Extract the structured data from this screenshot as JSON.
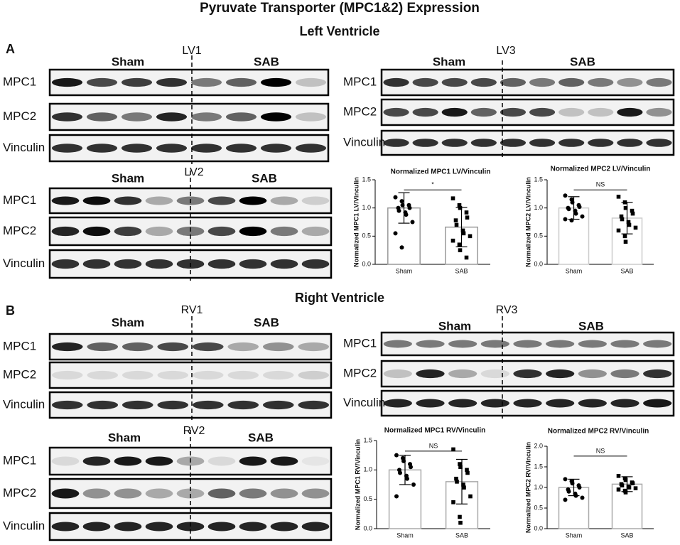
{
  "figure": {
    "title": "Pyruvate Transporter (MPC1&2) Expression",
    "sections": [
      "Left Ventricle",
      "Right Ventricle"
    ],
    "panel_labels": [
      "A",
      "B"
    ]
  },
  "blots": [
    {
      "label": "LV1",
      "groups": [
        "Sham",
        "SAB"
      ],
      "rows": [
        "MPC1",
        "MPC2",
        "Vinculin"
      ]
    },
    {
      "label": "LV3",
      "groups": [
        "Sham",
        "SAB"
      ],
      "rows": [
        "MPC1",
        "MPC2",
        "Vinculin"
      ]
    },
    {
      "label": "LV2",
      "groups": [
        "Sham",
        "SAB"
      ],
      "rows": [
        "MPC1",
        "MPC2",
        "Vinculin"
      ]
    },
    {
      "label": "RV1",
      "groups": [
        "Sham",
        "SAB"
      ],
      "rows": [
        "MPC1",
        "MPC2",
        "Vinculin"
      ]
    },
    {
      "label": "RV3",
      "groups": [
        "Sham",
        "SAB"
      ],
      "rows": [
        "MPC1",
        "MPC2",
        "Vinculin"
      ]
    },
    {
      "label": "RV2",
      "groups": [
        "Sham",
        "SAB"
      ],
      "rows": [
        "MPC1",
        "MPC2",
        "Vinculin"
      ]
    }
  ],
  "chart_data": [
    {
      "type": "bar",
      "title": "Normalized MPC1 LV/Vinculin",
      "y_label": "Normalized MPC1 LV/Vinculin",
      "categories": [
        "Sham",
        "SAB"
      ],
      "values": [
        1.0,
        0.66
      ],
      "errors": [
        0.27,
        0.35
      ],
      "points": [
        [
          1.19,
          1.12,
          1.05,
          1.05,
          1.0,
          1.0,
          0.95,
          0.92,
          0.88,
          0.75,
          0.55,
          0.3
        ],
        [
          1.17,
          1.05,
          1.0,
          0.92,
          0.83,
          0.78,
          0.7,
          0.6,
          0.55,
          0.5,
          0.42,
          0.35,
          0.25,
          0.12
        ]
      ],
      "markers": [
        "circle",
        "square"
      ],
      "color": "#999999",
      "point_color": "#000000",
      "annotation": "*",
      "ylim": [
        0,
        1.5
      ],
      "yticks": [
        {
          "value": 0,
          "label": "0.0"
        },
        0.5,
        {
          "value": 1,
          "label": "1.0"
        },
        1.5
      ]
    },
    {
      "type": "bar",
      "title": "Normalized MPC2 LV/Vinculin",
      "y_label": "Normalized MPC2 LV/Vinculin",
      "categories": [
        "Sham",
        "SAB"
      ],
      "values": [
        1.0,
        0.82
      ],
      "errors": [
        0.2,
        0.28
      ],
      "points": [
        [
          1.22,
          1.15,
          1.1,
          1.05,
          1.02,
          1.0,
          0.98,
          0.95,
          0.9,
          0.85,
          0.8,
          0.78
        ],
        [
          1.2,
          1.1,
          1.0,
          0.95,
          0.9,
          0.85,
          0.8,
          0.75,
          0.7,
          0.65,
          0.6,
          0.5,
          0.4
        ]
      ],
      "markers": [
        "circle",
        "square"
      ],
      "color": "#cccccc",
      "point_color": "#000000",
      "annotation": "NS",
      "ylim": [
        0,
        1.5
      ],
      "yticks": [
        {
          "value": 0,
          "label": "0.0"
        },
        0.5,
        {
          "value": 1,
          "label": "1.0"
        },
        1.5
      ]
    },
    {
      "type": "bar",
      "title": "Normalized MPC1 RV/Vinculin",
      "y_label": "Normalized MPC1 RV/Vinculin",
      "categories": [
        "Sham",
        "SAB"
      ],
      "values": [
        1.0,
        0.8
      ],
      "errors": [
        0.25,
        0.38
      ],
      "points": [
        [
          1.25,
          1.2,
          1.15,
          1.1,
          1.05,
          1.0,
          0.95,
          0.9,
          0.85,
          0.75,
          0.55
        ],
        [
          1.35,
          1.1,
          1.05,
          1.0,
          0.95,
          0.85,
          0.8,
          0.75,
          0.7,
          0.55,
          0.45,
          0.2,
          0.1
        ]
      ],
      "markers": [
        "circle",
        "square"
      ],
      "color": "#aaaaaa",
      "point_color": "#000000",
      "annotation": "NS",
      "ylim": [
        0,
        1.5
      ],
      "yticks": [
        {
          "value": 0,
          "label": "0.0"
        },
        0.5,
        {
          "value": 1,
          "label": "1.0"
        },
        1.5
      ]
    },
    {
      "type": "bar",
      "title": "Normalized MPC2 RV/Vinculin",
      "y_label": "Normalized MPC2 RV/Vinculin",
      "categories": [
        "Sham",
        "SAB"
      ],
      "values": [
        1.0,
        1.08
      ],
      "errors": [
        0.2,
        0.18
      ],
      "points": [
        [
          1.2,
          1.15,
          1.1,
          1.05,
          1.0,
          0.95,
          0.9,
          0.85,
          0.8,
          0.75,
          0.7
        ],
        [
          1.28,
          1.22,
          1.18,
          1.12,
          1.1,
          1.08,
          1.05,
          1.02,
          1.0,
          0.98,
          0.95,
          0.92,
          0.88
        ]
      ],
      "markers": [
        "circle",
        "square"
      ],
      "color": "#aaaaaa",
      "point_color": "#000000",
      "annotation": "NS",
      "ylim": [
        0,
        2
      ],
      "yticks": [
        {
          "value": 0,
          "label": "0.0"
        },
        0.5,
        {
          "value": 1,
          "label": "1.0"
        },
        1.5,
        {
          "value": 2,
          "label": "2.0"
        }
      ]
    }
  ]
}
